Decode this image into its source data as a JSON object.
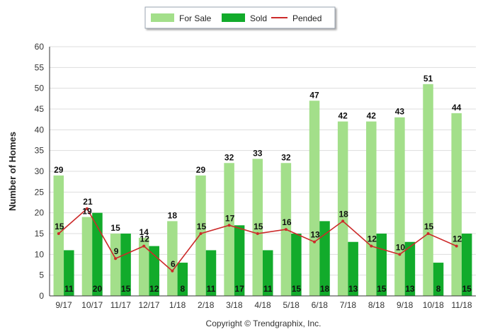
{
  "credit": "Copyright © Trendgraphix, Inc.",
  "colors": {
    "for_sale": "#a3df8a",
    "sold": "#12ab2b",
    "pended": "#cc2a2a",
    "grid": "#dddddd"
  },
  "chart_data": {
    "type": "bar",
    "title": "",
    "xlabel": "",
    "ylabel": "Number of Homes",
    "ylim": [
      0,
      60
    ],
    "yticks": [
      0,
      5,
      10,
      15,
      20,
      25,
      30,
      35,
      40,
      45,
      50,
      55,
      60
    ],
    "grid": true,
    "legend_position": "top-center",
    "categories": [
      "9/17",
      "10/17",
      "11/17",
      "12/17",
      "1/18",
      "2/18",
      "3/18",
      "4/18",
      "5/18",
      "6/18",
      "7/18",
      "8/18",
      "9/18",
      "10/18",
      "11/18"
    ],
    "series": [
      {
        "name": "For Sale",
        "type": "bar",
        "values": [
          29,
          19,
          15,
          14,
          18,
          29,
          32,
          33,
          32,
          47,
          42,
          42,
          43,
          51,
          44
        ]
      },
      {
        "name": "Sold",
        "type": "bar",
        "values": [
          11,
          20,
          15,
          12,
          8,
          11,
          17,
          11,
          15,
          18,
          13,
          15,
          13,
          8,
          15
        ]
      },
      {
        "name": "Pended",
        "type": "line",
        "values": [
          15,
          21,
          9,
          12,
          6,
          15,
          17,
          15,
          16,
          13,
          18,
          12,
          10,
          15,
          12
        ]
      }
    ]
  }
}
